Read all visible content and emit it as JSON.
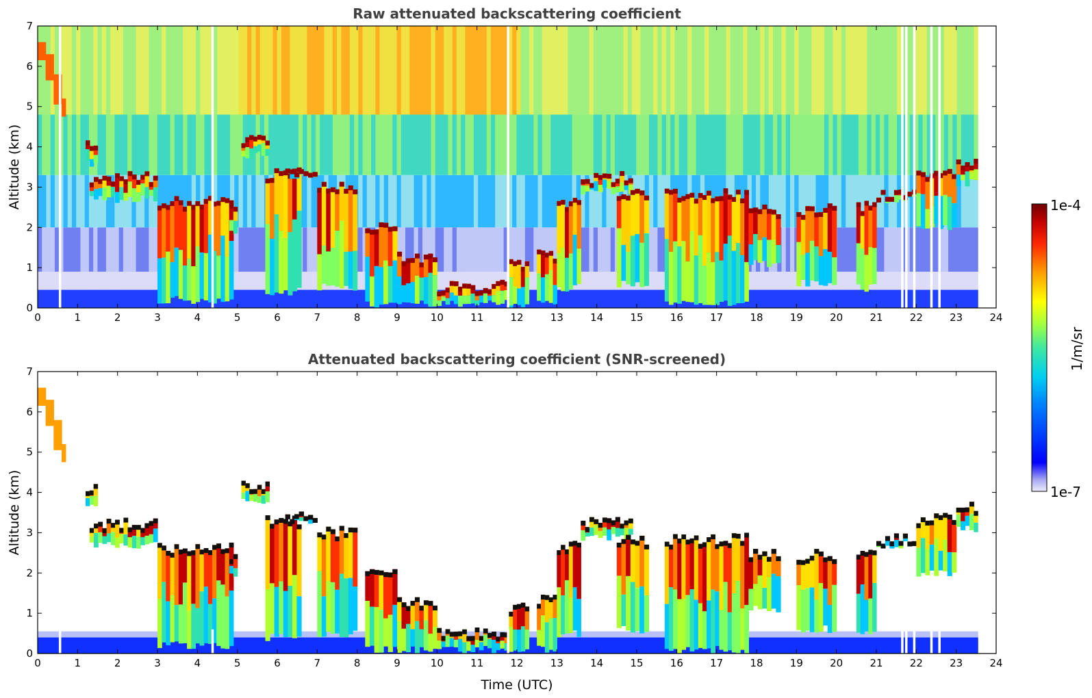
{
  "chart_data": [
    {
      "type": "heatmap",
      "panel": "raw",
      "title": "Raw attenuated backscattering coefficient",
      "xlabel": "",
      "ylabel": "Altitude (km)",
      "xlim": [
        0,
        24
      ],
      "ylim": [
        0,
        7
      ],
      "xticks": [
        0,
        1,
        2,
        3,
        4,
        5,
        6,
        7,
        8,
        9,
        10,
        11,
        12,
        13,
        14,
        15,
        16,
        17,
        18,
        19,
        20,
        21,
        22,
        23,
        24
      ],
      "yticks": [
        0,
        1,
        2,
        3,
        4,
        5,
        6,
        7
      ],
      "data_end_hour": 23.55,
      "layers": [
        {
          "name": "descending high cloud",
          "points": [
            [
              0.0,
              6.6
            ],
            [
              0.2,
              6.3
            ],
            [
              0.4,
              5.8
            ],
            [
              0.6,
              5.2
            ],
            [
              0.7,
              4.9
            ]
          ]
        },
        {
          "name": "morning cloud",
          "points": [
            [
              1.2,
              4.2
            ],
            [
              1.5,
              3.2
            ],
            [
              2.0,
              2.9
            ],
            [
              2.6,
              2.8
            ],
            [
              3.0,
              2.3
            ],
            [
              3.5,
              1.6
            ],
            [
              4.0,
              1.0
            ]
          ]
        },
        {
          "name": "elevated layer 5-8h",
          "points": [
            [
              5.0,
              4.3
            ],
            [
              5.7,
              3.9
            ],
            [
              6.2,
              3.5
            ],
            [
              7.0,
              3.2
            ],
            [
              7.3,
              2.6
            ],
            [
              7.9,
              1.2
            ]
          ]
        },
        {
          "name": "surface cloud 9-13h",
          "points": [
            [
              8.6,
              0.6
            ],
            [
              10.0,
              0.3
            ],
            [
              11.0,
              0.25
            ],
            [
              12.0,
              0.3
            ],
            [
              12.8,
              0.2
            ]
          ]
        },
        {
          "name": "afternoon cloud top",
          "points": [
            [
              13.0,
              2.7
            ],
            [
              13.8,
              3.2
            ],
            [
              14.9,
              3.0
            ],
            [
              16.0,
              2.9
            ],
            [
              17.5,
              2.8
            ],
            [
              18.0,
              2.5
            ],
            [
              19.0,
              2.5
            ],
            [
              20.0,
              2.6
            ],
            [
              21.0,
              2.8
            ],
            [
              22.0,
              2.8
            ],
            [
              23.0,
              3.4
            ],
            [
              23.5,
              3.3
            ]
          ]
        }
      ],
      "features": [
        "high-altitude noise above 4 km",
        "surface aerosol layer below 0.5 km",
        "data gaps near 21.6 h and 21.9 h"
      ]
    },
    {
      "type": "heatmap",
      "panel": "screened",
      "title": "Attenuated backscattering coefficient (SNR-screened)",
      "xlabel": "Time (UTC)",
      "ylabel": "Altitude (km)",
      "xlim": [
        0,
        24
      ],
      "ylim": [
        0,
        7
      ],
      "xticks": [
        0,
        1,
        2,
        3,
        4,
        5,
        6,
        7,
        8,
        9,
        10,
        11,
        12,
        13,
        14,
        15,
        16,
        17,
        18,
        19,
        20,
        21,
        22,
        23,
        24
      ],
      "yticks": [
        0,
        1,
        2,
        3,
        4,
        5,
        6,
        7
      ],
      "data_end_hour": 23.55,
      "features": [
        "noise removed",
        "saturated cloud tops shown in black"
      ]
    }
  ],
  "colorbar": {
    "label": "1/m/sr",
    "max_label": "1e-4",
    "min_label": "1e-7",
    "scale": "log",
    "colors": [
      "#e8e8f8",
      "#9090f0",
      "#0000ff",
      "#0070ff",
      "#00c8ff",
      "#30e0b0",
      "#80ff60",
      "#ffff00",
      "#ffa000",
      "#ff3000",
      "#c00000",
      "#780000"
    ]
  }
}
